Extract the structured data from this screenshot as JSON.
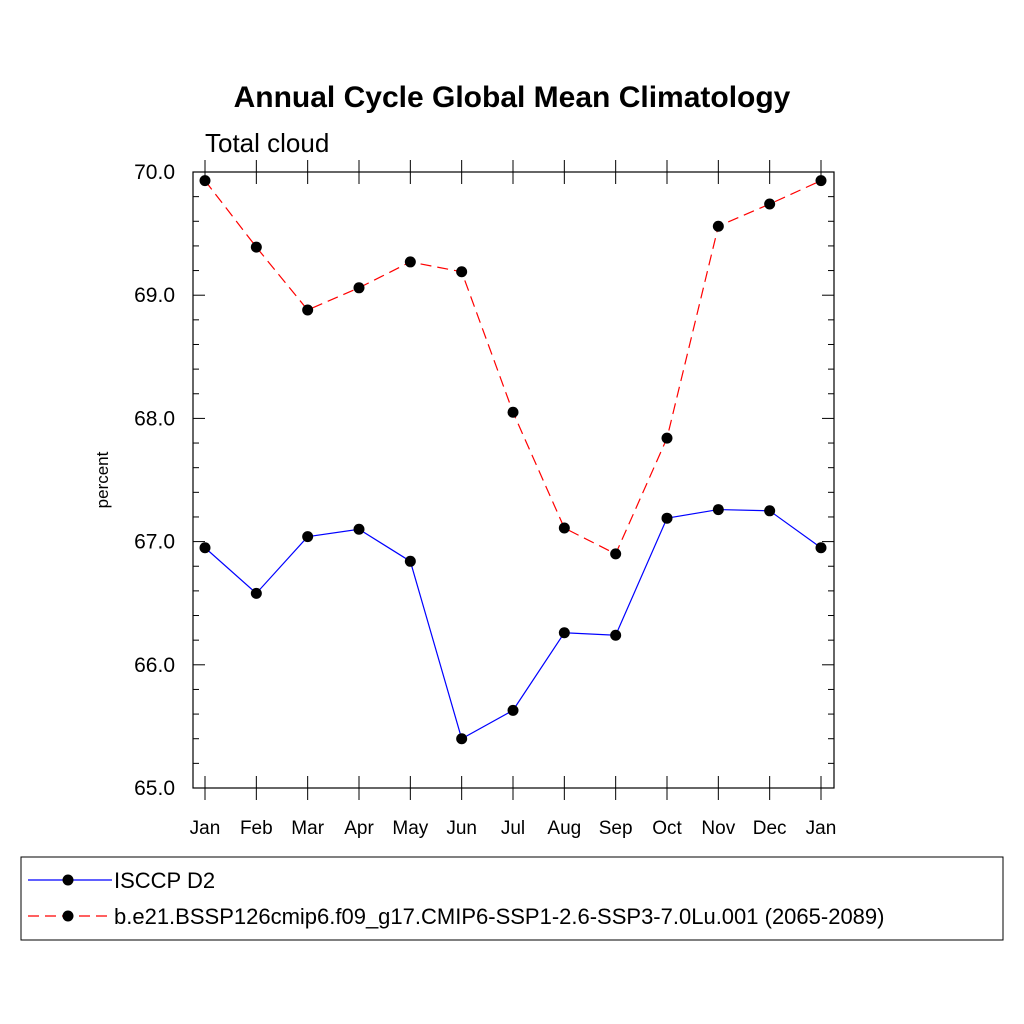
{
  "chart_data": {
    "type": "line",
    "title": "Annual Cycle Global Mean Climatology",
    "subtitle": "Total cloud",
    "ylabel": "percent",
    "xlabel": "",
    "categories": [
      "Jan",
      "Feb",
      "Mar",
      "Apr",
      "May",
      "Jun",
      "Jul",
      "Aug",
      "Sep",
      "Oct",
      "Nov",
      "Dec",
      "Jan"
    ],
    "ylim": [
      65.0,
      70.0
    ],
    "yticks": [
      "65.0",
      "66.0",
      "67.0",
      "68.0",
      "69.0",
      "70.0"
    ],
    "grid": false,
    "legend_position": "bottom",
    "series": [
      {
        "name": "ISCCP D2",
        "color": "#0000ff",
        "line_style": "solid",
        "marker": "filled-circle",
        "values": [
          66.95,
          66.58,
          67.04,
          67.1,
          66.84,
          65.4,
          65.63,
          66.26,
          66.24,
          67.19,
          67.26,
          67.25,
          66.95
        ]
      },
      {
        "name": "b.e21.BSSP126cmip6.f09_g17.CMIP6-SSP1-2.6-SSP3-7.0Lu.001 (2065-2089)",
        "color": "#ff0000",
        "line_style": "dashed",
        "marker": "filled-circle",
        "values": [
          69.93,
          69.39,
          68.88,
          69.06,
          69.27,
          69.19,
          68.05,
          67.11,
          66.9,
          67.84,
          69.56,
          69.74,
          69.93
        ]
      }
    ]
  }
}
